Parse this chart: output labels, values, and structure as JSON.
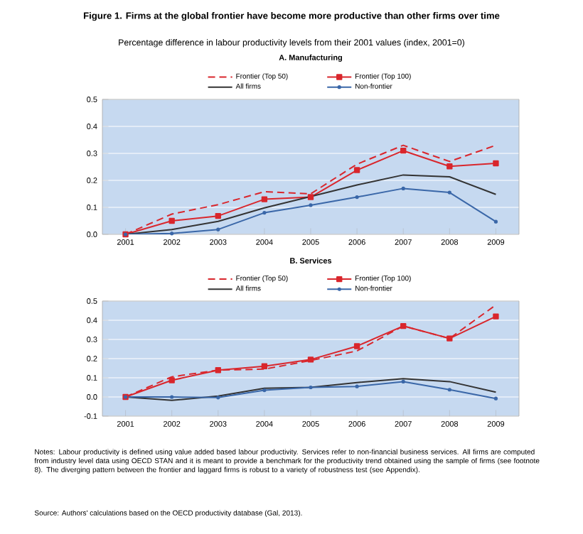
{
  "chart_data": [
    {
      "type": "line",
      "title": "A. Manufacturing",
      "annotations": [
        "Figure 1.  Firms at the global frontier have become more productive than other firms over time",
        "Percentage difference in labour productivity levels from their 2001 values (index, 2001=0)"
      ],
      "categories": [
        "2001",
        "2002",
        "2003",
        "2004",
        "2005",
        "2006",
        "2007",
        "2008",
        "2009"
      ],
      "ylim": [
        0,
        0.5
      ],
      "yticks": [
        {
          "value": 0,
          "label": "0.0"
        },
        0.1,
        0.2,
        0.3,
        0.4,
        0.5
      ],
      "grid": "y",
      "legend": "top",
      "series": [
        {
          "name": "Frontier (Top 50)",
          "color": "#d9262c",
          "line_style": "dashed",
          "marker": "none",
          "values": [
            0,
            0.075,
            0.11,
            0.158,
            0.15,
            0.26,
            0.33,
            0.27,
            0.33
          ]
        },
        {
          "name": "Frontier (Top 100)",
          "color": "#d9262c",
          "line_style": "solid",
          "marker": "square",
          "values": [
            0,
            0.05,
            0.068,
            0.13,
            0.138,
            0.238,
            0.31,
            0.252,
            0.263
          ]
        },
        {
          "name": "All firms",
          "color": "#333333",
          "line_style": "solid",
          "marker": "none",
          "values": [
            0,
            0.018,
            0.048,
            0.098,
            0.14,
            0.183,
            0.22,
            0.213,
            0.148
          ]
        },
        {
          "name": "Non-frontier",
          "color": "#3a67a8",
          "line_style": "solid",
          "marker": "circle",
          "values": [
            0,
            0.003,
            0.018,
            0.08,
            0.108,
            0.138,
            0.17,
            0.155,
            0.047
          ]
        }
      ]
    },
    {
      "type": "line",
      "title": "B. Services",
      "annotations": [
        "Notes: Labour productivity is defined using value added based labour productivity. Services refer to non-financial business services. All firms are computed from industry level data using OECD STAN and it is meant to provide a benchmark for the productivity trend obtained using the sample of firms (see footnote 8). The diverging pattern between the frontier and laggard firms is robust to a variety of robustness test (see Appendix).",
        "Source: Authors' calculations based on the OECD productivity database (Gal, 2013)."
      ],
      "categories": [
        "2001",
        "2002",
        "2003",
        "2004",
        "2005",
        "2006",
        "2007",
        "2008",
        "2009"
      ],
      "ylim": [
        -0.1,
        0.5
      ],
      "yticks": [
        -0.1,
        {
          "value": 0,
          "label": "0.0"
        },
        0.1,
        0.2,
        0.3,
        0.4,
        0.5
      ],
      "grid": "y",
      "legend": "top",
      "series": [
        {
          "name": "Frontier (Top 50)",
          "color": "#d9262c",
          "line_style": "dashed",
          "marker": "none",
          "values": [
            0,
            0.105,
            0.14,
            0.145,
            0.19,
            0.24,
            0.37,
            0.305,
            0.48
          ]
        },
        {
          "name": "Frontier (Top 100)",
          "color": "#d9262c",
          "line_style": "solid",
          "marker": "square",
          "values": [
            0,
            0.087,
            0.14,
            0.16,
            0.195,
            0.265,
            0.37,
            0.305,
            0.42
          ]
        },
        {
          "name": "All firms",
          "color": "#333333",
          "line_style": "solid",
          "marker": "none",
          "values": [
            0,
            -0.018,
            0.005,
            0.045,
            0.05,
            0.075,
            0.095,
            0.08,
            0.025
          ]
        },
        {
          "name": "Non-frontier",
          "color": "#3a67a8",
          "line_style": "solid",
          "marker": "circle",
          "values": [
            0,
            0,
            -0.003,
            0.035,
            0.05,
            0.055,
            0.08,
            0.038,
            -0.008
          ]
        }
      ]
    }
  ]
}
